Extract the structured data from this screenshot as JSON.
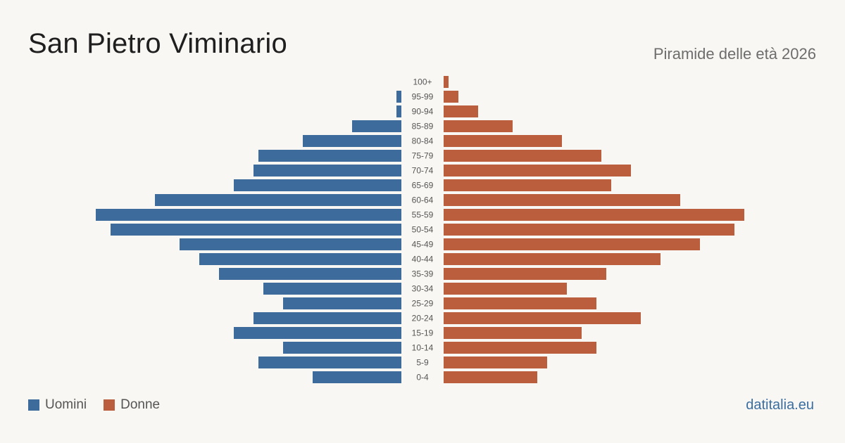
{
  "header": {
    "title": "San Pietro Viminario",
    "subtitle": "Piramide delle età 2026"
  },
  "legend": {
    "men_label": "Uomini",
    "women_label": "Donne"
  },
  "brand": "datitalia.eu",
  "colors": {
    "men": "#3d6b9c",
    "women": "#bb5e3e",
    "background": "#f9f7f3"
  },
  "chart_data": {
    "type": "bar",
    "orientation": "horizontal-pyramid",
    "categories": [
      "100+",
      "95-99",
      "90-94",
      "85-89",
      "80-84",
      "75-79",
      "70-74",
      "65-69",
      "60-64",
      "55-59",
      "50-54",
      "45-49",
      "40-44",
      "35-39",
      "30-34",
      "25-29",
      "20-24",
      "15-19",
      "10-14",
      "5-9",
      "0-4"
    ],
    "series": [
      {
        "name": "Uomini",
        "values": [
          0,
          1,
          1,
          10,
          20,
          29,
          30,
          34,
          50,
          62,
          59,
          45,
          41,
          37,
          28,
          24,
          30,
          34,
          24,
          29,
          18
        ]
      },
      {
        "name": "Donne",
        "values": [
          1,
          3,
          7,
          14,
          24,
          32,
          38,
          34,
          48,
          61,
          59,
          52,
          44,
          33,
          25,
          31,
          40,
          28,
          31,
          21,
          19
        ]
      }
    ],
    "legend_position": "bottom-left",
    "grid": false
  }
}
